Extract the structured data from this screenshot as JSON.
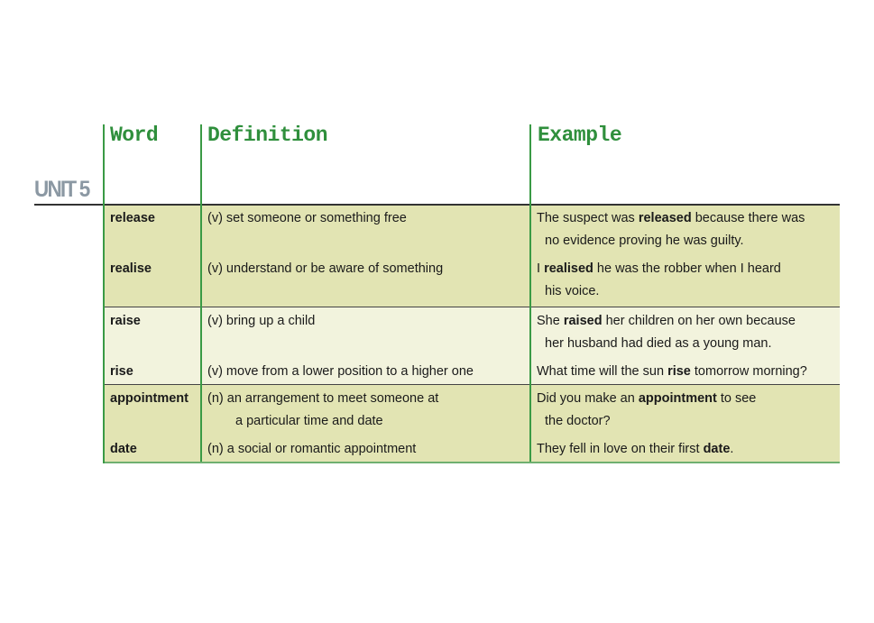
{
  "unit_label": "UNIT 5",
  "headers": {
    "word": "Word",
    "definition": "Definition",
    "example": "Example"
  },
  "colors": {
    "heading_green": "#2f8f3c",
    "rule_green": "#3a9a45",
    "band_dark": "#e2e4b3",
    "band_light": "#f2f3dd",
    "unit_gray": "#8b98a3"
  },
  "groups": [
    {
      "rows": [
        {
          "word": "release",
          "definition": [
            "(v) set someone or something free",
            ""
          ],
          "example": {
            "pre": "The suspect was ",
            "bold": "released",
            "post": " because there was",
            "cont": "no evidence proving he was guilty."
          }
        },
        {
          "word": "realise",
          "definition": [
            "(v) understand or be aware of something",
            ""
          ],
          "example": {
            "pre": "I ",
            "bold": "realised",
            "post": " he was the robber when I heard",
            "cont": "his voice."
          }
        }
      ]
    },
    {
      "rows": [
        {
          "word": "raise",
          "definition": [
            "(v) bring up a child",
            ""
          ],
          "example": {
            "pre": "She ",
            "bold": "raised",
            "post": " her children on her own because",
            "cont": "her husband had died as a young man."
          }
        },
        {
          "word": "rise",
          "definition": [
            "(v) move from a lower position to a higher one",
            ""
          ],
          "example": {
            "pre": "What time will the sun ",
            "bold": "rise",
            "post": " tomorrow morning?",
            "cont": ""
          }
        }
      ]
    },
    {
      "rows": [
        {
          "word": "appointment",
          "definition": [
            "(n) an arrangement to meet someone at",
            "a particular time and date"
          ],
          "example": {
            "pre": "Did you make an ",
            "bold": "appointment",
            "post": " to see",
            "cont": "the doctor?"
          }
        },
        {
          "word": "date",
          "definition": [
            "(n) a social or romantic appointment",
            ""
          ],
          "example": {
            "pre": "They fell in love on their first ",
            "bold": "date",
            "post": ".",
            "cont": ""
          }
        }
      ]
    }
  ]
}
